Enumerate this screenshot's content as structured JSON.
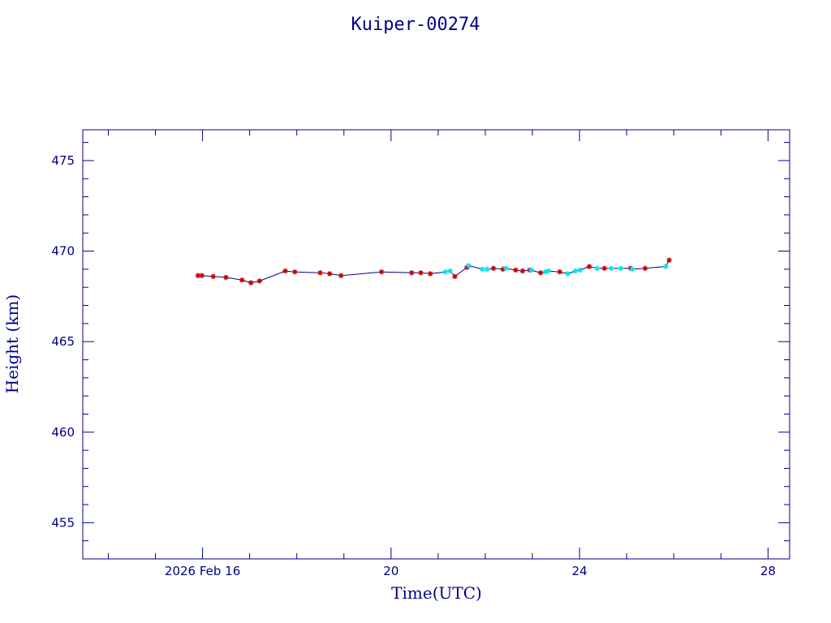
{
  "chart_data": {
    "type": "line",
    "title": "Kuiper-00274",
    "xlabel": "Time(UTC)",
    "ylabel": "Height (km)",
    "xlim": [
      "2026-02-13T11:00",
      "2026-02-28T11:00"
    ],
    "ylim": [
      453,
      476.7
    ],
    "x_ticks": [
      {
        "x": "2026-02-16T00:00",
        "label": "2026 Feb 16"
      },
      {
        "x": "2026-02-20T00:00",
        "label": "20"
      },
      {
        "x": "2026-02-24T00:00",
        "label": "24"
      },
      {
        "x": "2026-02-28T00:00",
        "label": "28"
      }
    ],
    "y_ticks": [
      455,
      460,
      465,
      470,
      475
    ],
    "grid": false,
    "colors": {
      "frame": "#00008b",
      "line": "#00008b",
      "red_markers": "#cc0000",
      "cyan_markers": "#00e5ee"
    },
    "series": [
      {
        "color": "#cc0000",
        "marker": "star",
        "points": [
          {
            "x": "2026-02-15T21:40",
            "y": 468.65
          },
          {
            "x": "2026-02-15T23:40",
            "y": 468.65
          },
          {
            "x": "2026-02-16T05:25",
            "y": 468.6
          },
          {
            "x": "2026-02-16T11:55",
            "y": 468.55
          },
          {
            "x": "2026-02-16T20:05",
            "y": 468.4
          },
          {
            "x": "2026-02-17T00:40",
            "y": 468.25
          },
          {
            "x": "2026-02-17T05:00",
            "y": 468.35
          },
          {
            "x": "2026-02-17T18:10",
            "y": 468.9
          },
          {
            "x": "2026-02-17T23:00",
            "y": 468.85
          },
          {
            "x": "2026-02-18T11:55",
            "y": 468.8
          },
          {
            "x": "2026-02-18T16:45",
            "y": 468.75
          },
          {
            "x": "2026-02-18T22:35",
            "y": 468.65
          },
          {
            "x": "2026-02-19T19:10",
            "y": 468.85
          },
          {
            "x": "2026-02-20T10:30",
            "y": 468.8
          },
          {
            "x": "2026-02-20T15:10",
            "y": 468.8
          },
          {
            "x": "2026-02-20T20:00",
            "y": 468.75
          },
          {
            "x": "2026-02-21T08:30",
            "y": 468.6
          },
          {
            "x": "2026-02-21T14:40",
            "y": 469.1
          },
          {
            "x": "2026-02-22T04:10",
            "y": 469.05
          },
          {
            "x": "2026-02-22T09:00",
            "y": 469.0
          },
          {
            "x": "2026-02-22T15:30",
            "y": 468.95
          },
          {
            "x": "2026-02-22T19:00",
            "y": 468.9
          },
          {
            "x": "2026-02-22T22:40",
            "y": 468.95
          },
          {
            "x": "2026-02-23T04:10",
            "y": 468.8
          },
          {
            "x": "2026-02-23T13:55",
            "y": 468.85
          },
          {
            "x": "2026-02-24T05:00",
            "y": 469.15
          },
          {
            "x": "2026-02-24T12:40",
            "y": 469.05
          },
          {
            "x": "2026-02-25T02:00",
            "y": 469.05
          },
          {
            "x": "2026-02-25T09:25",
            "y": 469.05
          },
          {
            "x": "2026-02-25T21:40",
            "y": 469.5
          }
        ]
      },
      {
        "color": "#00e5ee",
        "marker": "star",
        "points": [
          {
            "x": "2026-02-21T03:40",
            "y": 468.85
          },
          {
            "x": "2026-02-21T06:10",
            "y": 468.9
          },
          {
            "x": "2026-02-21T15:30",
            "y": 469.2
          },
          {
            "x": "2026-02-21T22:35",
            "y": 469.0
          },
          {
            "x": "2026-02-22T01:00",
            "y": 469.0
          },
          {
            "x": "2026-02-22T10:35",
            "y": 469.05
          },
          {
            "x": "2026-02-22T23:25",
            "y": 468.95
          },
          {
            "x": "2026-02-23T06:35",
            "y": 468.85
          },
          {
            "x": "2026-02-23T08:10",
            "y": 468.9
          },
          {
            "x": "2026-02-23T18:00",
            "y": 468.75
          },
          {
            "x": "2026-02-23T21:50",
            "y": 468.9
          },
          {
            "x": "2026-02-24T00:15",
            "y": 468.95
          },
          {
            "x": "2026-02-24T09:00",
            "y": 469.05
          },
          {
            "x": "2026-02-24T16:10",
            "y": 469.05
          },
          {
            "x": "2026-02-24T21:00",
            "y": 469.05
          },
          {
            "x": "2026-02-25T02:45",
            "y": 469.0
          },
          {
            "x": "2026-02-25T19:55",
            "y": 469.15
          }
        ]
      }
    ]
  }
}
